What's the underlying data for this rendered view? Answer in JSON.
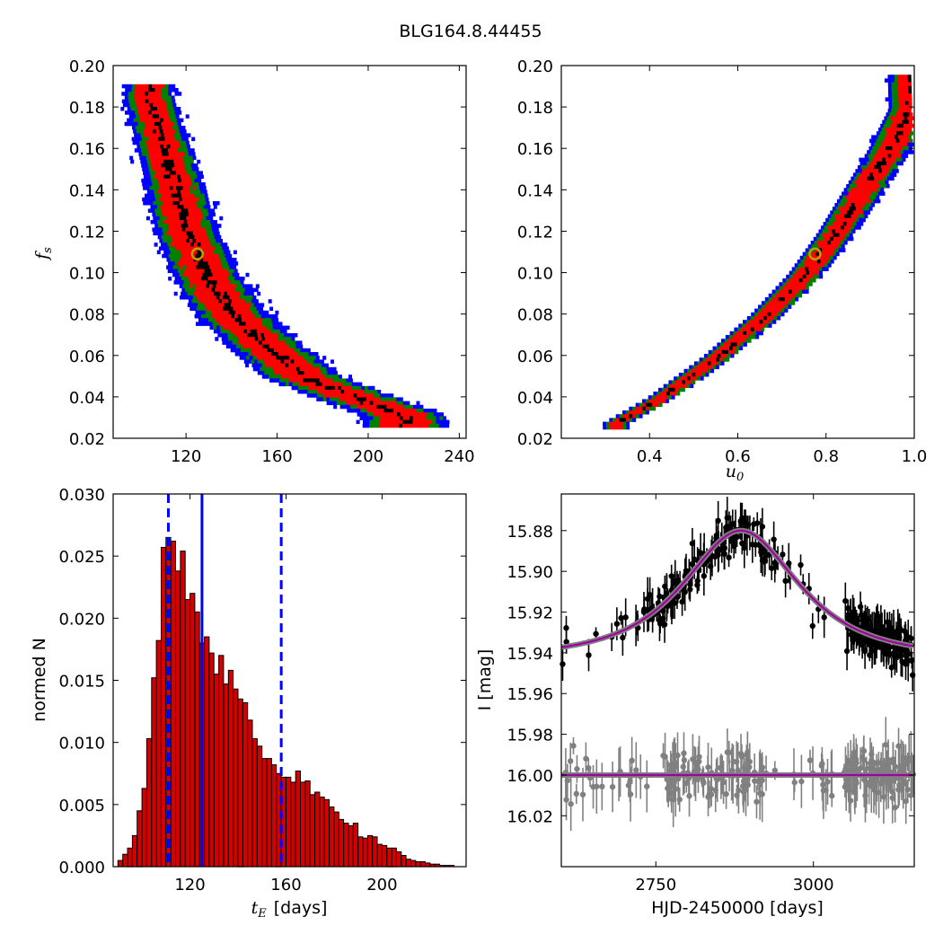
{
  "title": "BLG164.8.44455",
  "colors": {
    "sigma1": "#000000",
    "sigma2": "#ff0000",
    "sigma3": "#008000",
    "sigma4": "#0000ff",
    "marker_edge": "#b8a000",
    "hist_bar": "#d40000",
    "hist_line": "#0000ff",
    "model": "#a000a0",
    "ogle_points": "#000000",
    "other_points": "#808080"
  },
  "chart_data": [
    {
      "id": "fs_vs_tE",
      "type": "heatmap",
      "ylabel": "f_s",
      "xlim": [
        88,
        243
      ],
      "ylim": [
        0.02,
        0.2
      ],
      "xticks": [
        "120",
        "160",
        "200",
        "240"
      ],
      "yticks": [
        "0.02",
        "0.04",
        "0.06",
        "0.08",
        "0.10",
        "0.12",
        "0.14",
        "0.16",
        "0.18",
        "0.20"
      ],
      "ridge_fs": [
        0.185,
        0.16,
        0.14,
        0.12,
        0.1,
        0.08,
        0.065,
        0.05,
        0.04,
        0.032
      ],
      "ridge_tE": [
        103,
        110,
        115,
        120,
        128,
        140,
        155,
        172,
        195,
        215
      ],
      "best_fit": {
        "tE": 125,
        "fs": 0.109
      }
    },
    {
      "id": "fs_vs_u0",
      "type": "heatmap",
      "xlabel": "u_0",
      "xlim": [
        0.2,
        1.0
      ],
      "ylim": [
        0.02,
        0.2
      ],
      "xticks": [
        "0.4",
        "0.6",
        "0.8",
        "1.0"
      ],
      "yticks": [
        "0.02",
        "0.04",
        "0.06",
        "0.08",
        "0.10",
        "0.12",
        "0.14",
        "0.16",
        "0.18",
        "0.20"
      ],
      "ridge_fs": [
        0.028,
        0.04,
        0.06,
        0.08,
        0.1,
        0.12,
        0.14,
        0.16,
        0.18
      ],
      "ridge_u0": [
        0.32,
        0.42,
        0.55,
        0.66,
        0.75,
        0.82,
        0.88,
        0.94,
        0.99
      ],
      "best_fit": {
        "u0": 0.775,
        "fs": 0.109
      }
    },
    {
      "id": "tE_histogram",
      "type": "bar",
      "xlabel": "t_E",
      "xlabel_unit": "[days]",
      "ylabel": "normed N",
      "xlim": [
        88,
        235
      ],
      "ylim": [
        0,
        0.03
      ],
      "xticks": [
        "120",
        "160",
        "200"
      ],
      "yticks": [
        "0.000",
        "0.005",
        "0.010",
        "0.015",
        "0.020",
        "0.025",
        "0.030"
      ],
      "bin_start": 90,
      "bin_width": 2,
      "values": [
        0.0005,
        0.001,
        0.0015,
        0.0025,
        0.0045,
        0.0063,
        0.0103,
        0.0152,
        0.0182,
        0.0257,
        0.0265,
        0.0262,
        0.0238,
        0.0254,
        0.0215,
        0.022,
        0.0205,
        0.018,
        0.0185,
        0.0172,
        0.0155,
        0.017,
        0.0147,
        0.0158,
        0.0143,
        0.0135,
        0.0132,
        0.0118,
        0.0103,
        0.0097,
        0.0087,
        0.0087,
        0.0082,
        0.0075,
        0.0072,
        0.0072,
        0.0068,
        0.0077,
        0.0068,
        0.0069,
        0.0058,
        0.006,
        0.0056,
        0.0054,
        0.0048,
        0.0044,
        0.0038,
        0.0035,
        0.0033,
        0.0035,
        0.0024,
        0.0023,
        0.0025,
        0.0024,
        0.0018,
        0.0017,
        0.0015,
        0.0015,
        0.0012,
        0.0009,
        0.0006,
        0.0005,
        0.0004,
        0.0004,
        0.0003,
        0.0002,
        0.0002,
        0.0001,
        0.0001,
        0.0001
      ],
      "median": 125,
      "lower": 111,
      "upper": 158
    },
    {
      "id": "light_curve",
      "type": "scatter",
      "xlabel": "HJD-2450000 [days]",
      "ylabel": "I [mag]",
      "xlim": [
        2600,
        3160
      ],
      "ylim": [
        16.045,
        15.862
      ],
      "xticks": [
        "2750",
        "3000"
      ],
      "yticks": [
        "15.88",
        "15.90",
        "15.92",
        "15.94",
        "15.96",
        "15.98",
        "16.00",
        "16.02"
      ],
      "model_peak": {
        "t0": 2885,
        "mag": 15.88
      },
      "baseline_mag": 15.942,
      "second_baseline_mag": 16.0,
      "tE": 125,
      "u0": 0.775,
      "series": []
    }
  ]
}
